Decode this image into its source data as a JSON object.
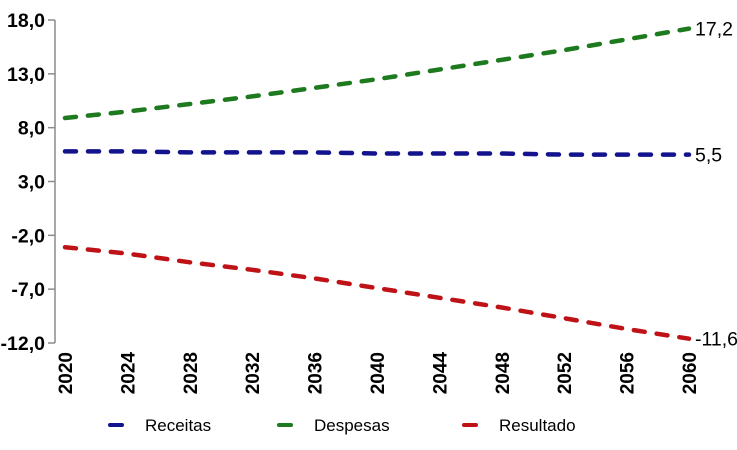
{
  "chart_data": {
    "type": "line",
    "line_style": "dashed",
    "grid": false,
    "legend_position": "bottom",
    "x": [
      2020,
      2024,
      2028,
      2032,
      2036,
      2040,
      2044,
      2048,
      2052,
      2056,
      2060
    ],
    "x_tick_labels": [
      "2020",
      "2024",
      "2028",
      "2032",
      "2036",
      "2040",
      "2044",
      "2048",
      "2052",
      "2056",
      "2060"
    ],
    "xlim": [
      2020,
      2060
    ],
    "y_ticks": [
      18,
      13,
      8,
      3,
      -2,
      -7,
      -12
    ],
    "y_tick_labels": [
      "18,0",
      "13,0",
      "8,0",
      "3,0",
      "-2,0",
      "-7,0",
      "-12,0"
    ],
    "ylim": [
      -12,
      18
    ],
    "number_format": "decimal-comma",
    "series": [
      {
        "name": "Receitas",
        "color": "#13138D",
        "end_label": "5,5",
        "values": [
          5.8,
          5.8,
          5.7,
          5.7,
          5.7,
          5.6,
          5.6,
          5.6,
          5.5,
          5.5,
          5.5
        ]
      },
      {
        "name": "Despesas",
        "color": "#1E7A1E",
        "end_label": "17,2",
        "values": [
          8.9,
          9.5,
          10.2,
          10.9,
          11.7,
          12.5,
          13.4,
          14.3,
          15.2,
          16.2,
          17.2
        ]
      },
      {
        "name": "Resultado",
        "color": "#BE1217",
        "end_label": "-11,6",
        "values": [
          -3.1,
          -3.7,
          -4.5,
          -5.2,
          -6.0,
          -6.9,
          -7.8,
          -8.7,
          -9.7,
          -10.7,
          -11.6
        ]
      }
    ]
  },
  "colors": {
    "axis": "#8C8C8C",
    "text": "#000000",
    "background": "#FFFFFF"
  }
}
